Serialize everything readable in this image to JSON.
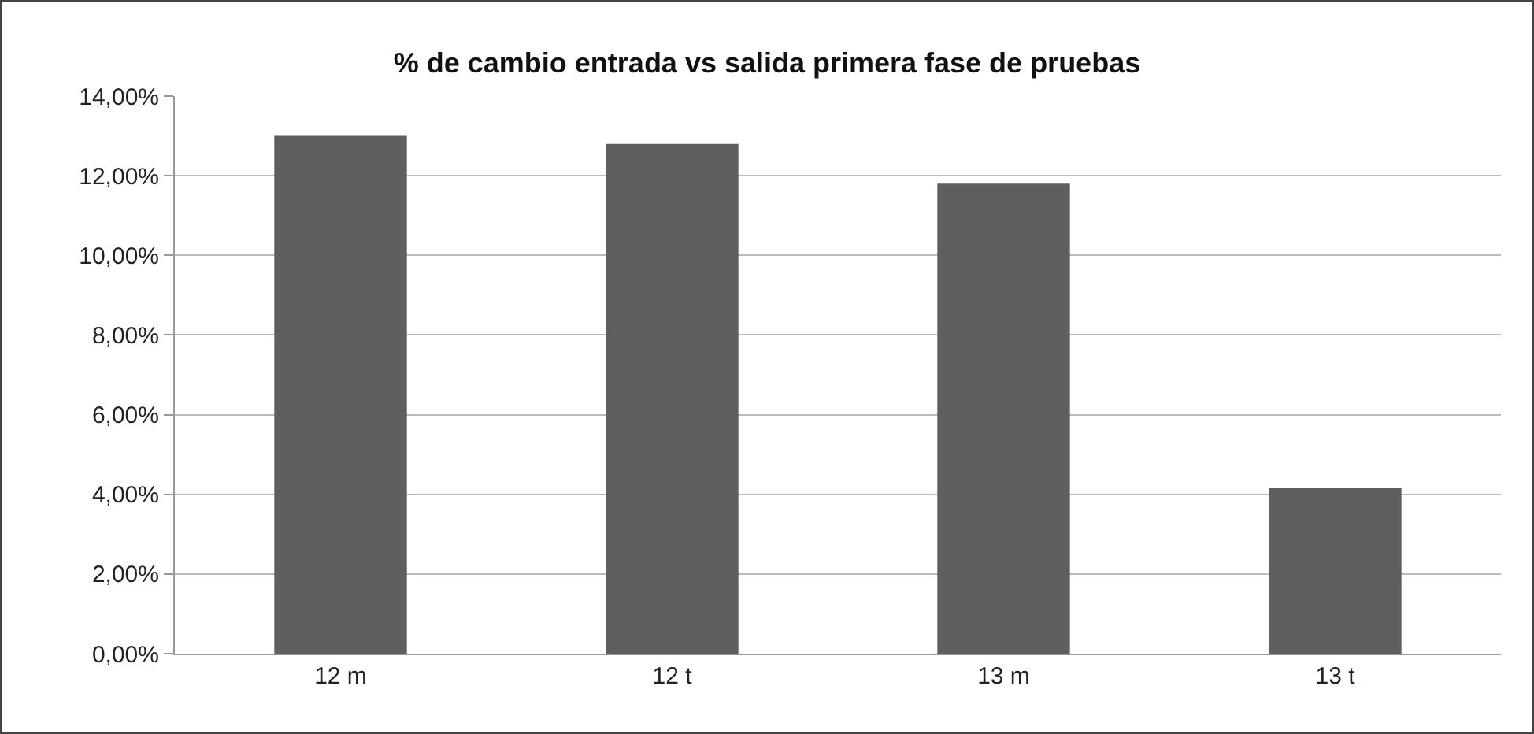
{
  "chart_data": {
    "type": "bar",
    "title": "% de cambio entrada vs salida primera fase de pruebas",
    "categories": [
      "12 m",
      "12 t",
      "13 m",
      "13 t"
    ],
    "values": [
      13.0,
      12.8,
      11.8,
      4.15
    ],
    "color": "#5f5f5f",
    "ylim": [
      0,
      14
    ],
    "yticks": [
      {
        "value": 0,
        "label": "0,00%"
      },
      {
        "value": 2,
        "label": "2,00%"
      },
      {
        "value": 4,
        "label": "4,00%"
      },
      {
        "value": 6,
        "label": "6,00%"
      },
      {
        "value": 8,
        "label": "8,00%"
      },
      {
        "value": 10,
        "label": "10,00%"
      },
      {
        "value": 12,
        "label": "12,00%"
      },
      {
        "value": 14,
        "label": "14,00%"
      }
    ],
    "grid": "y"
  }
}
